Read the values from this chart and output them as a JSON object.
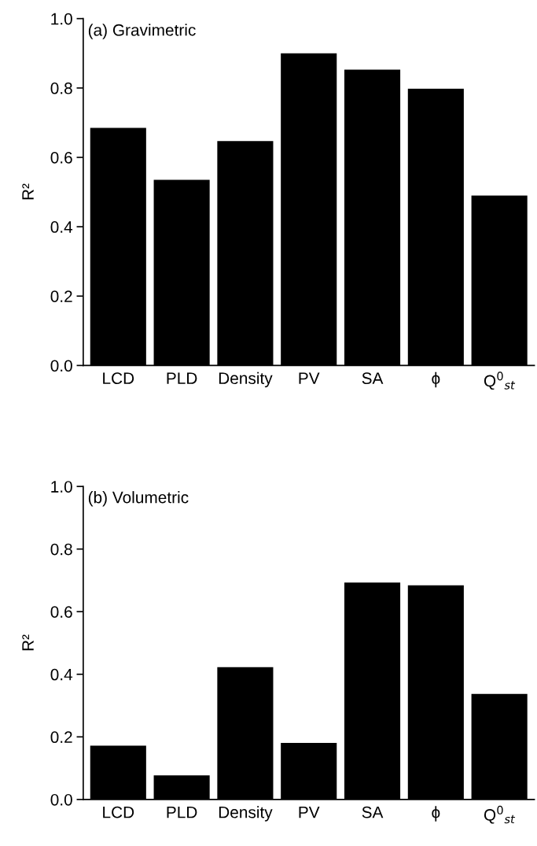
{
  "chart_data": [
    {
      "type": "bar",
      "ylabel": "R²",
      "annotations": [
        "(a) Gravimetric"
      ],
      "categories": [
        "LCD",
        "PLD",
        "Density",
        "PV",
        "SA",
        "ϕ",
        "Q$^{0}$$_{st}$"
      ],
      "values": [
        0.685,
        0.535,
        0.647,
        0.9,
        0.853,
        0.798,
        0.49
      ],
      "color": "#000000",
      "ylim": [
        0,
        1.0
      ],
      "yticks": [
        {
          "value": 0,
          "label": "0.0"
        },
        {
          "value": 0.2,
          "label": "0.2"
        },
        {
          "value": 0.4,
          "label": "0.4"
        },
        {
          "value": 0.6,
          "label": "0.6"
        },
        {
          "value": 0.8,
          "label": "0.8"
        },
        {
          "value": 1.0,
          "label": "1.0"
        }
      ]
    },
    {
      "type": "bar",
      "ylabel": "R²",
      "annotations": [
        "(b) Volumetric"
      ],
      "categories": [
        "LCD",
        "PLD",
        "Density",
        "PV",
        "SA",
        "ϕ",
        "Q$^{0}$$_{st}$"
      ],
      "values": [
        0.172,
        0.077,
        0.423,
        0.181,
        0.693,
        0.684,
        0.337
      ],
      "color": "#000000",
      "ylim": [
        0,
        1.0
      ],
      "yticks": [
        {
          "value": 0,
          "label": "0.0"
        },
        {
          "value": 0.2,
          "label": "0.2"
        },
        {
          "value": 0.4,
          "label": "0.4"
        },
        {
          "value": 0.6,
          "label": "0.6"
        },
        {
          "value": 0.8,
          "label": "0.8"
        },
        {
          "value": 1.0,
          "label": "1.0"
        }
      ]
    }
  ]
}
